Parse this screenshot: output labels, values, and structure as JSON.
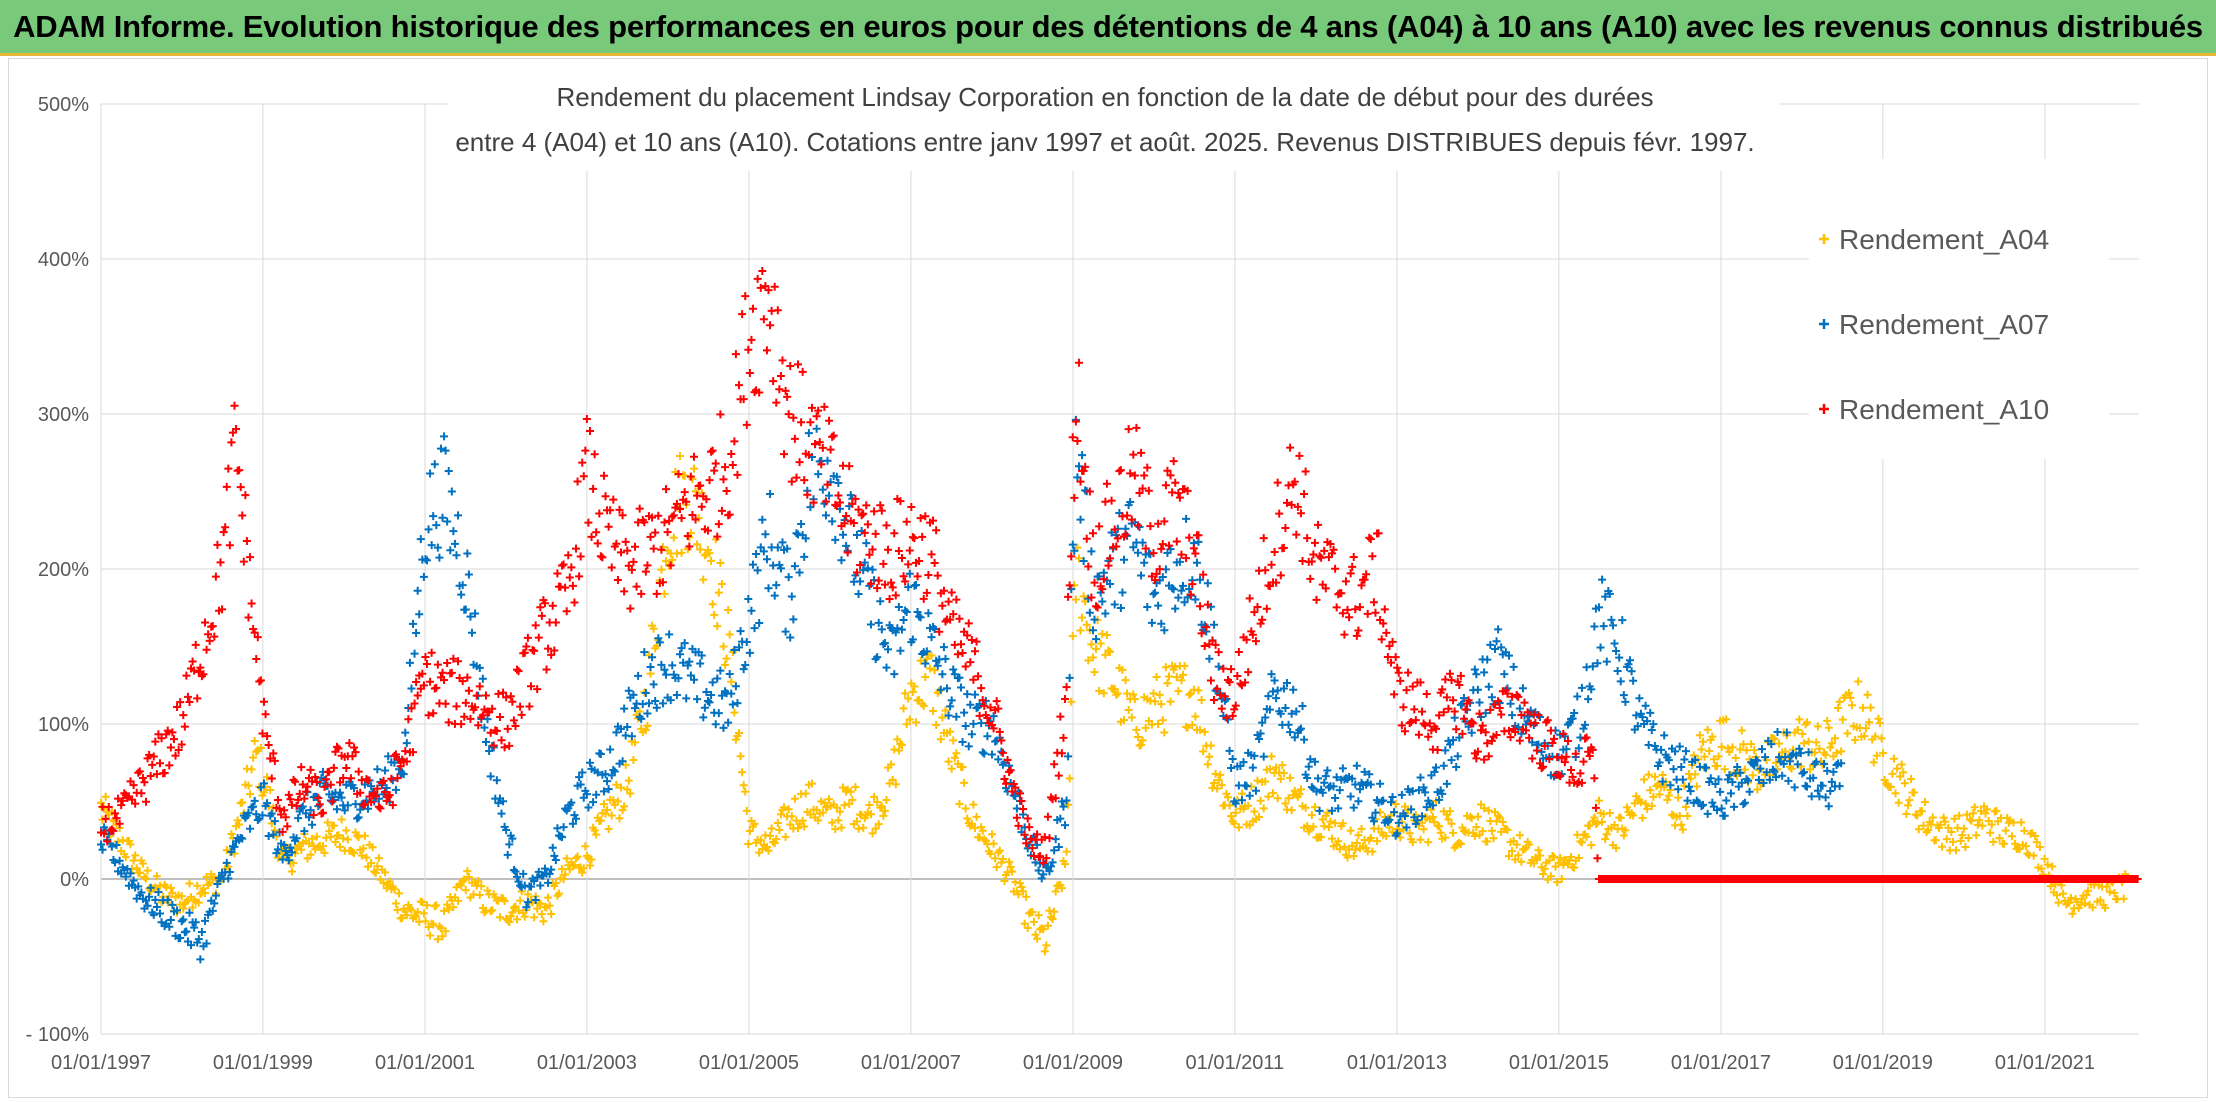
{
  "header": {
    "title": "ADAM Informe. Evolution historique des performances en euros pour des détentions de 4 ans (A04) à 10 ans (A10) avec les revenus connus distribués"
  },
  "chart_data": {
    "type": "scatter",
    "title_line1": "Rendement du placement Lindsay Corporation en fonction de la date de début pour des durées",
    "title_line2": "entre 4 (A04) et 10 ans (A10). Cotations entre janv 1997 et août. 2025. Revenus DISTRIBUES depuis févr. 1997.",
    "y_axis": {
      "min": -100,
      "max": 500,
      "ticks": [
        -100,
        0,
        100,
        200,
        300,
        400,
        500
      ],
      "tick_labels": [
        "- 100%",
        "0%",
        "100%",
        "200%",
        "300%",
        "400%",
        "500%"
      ]
    },
    "x_axis": {
      "min": "1997-01-01",
      "max": "2022-03-01",
      "tick_dates": [
        "1997-01-01",
        "1999-01-01",
        "2001-01-01",
        "2003-01-01",
        "2005-01-01",
        "2007-01-01",
        "2009-01-01",
        "2011-01-01",
        "2013-01-01",
        "2015-01-01",
        "2017-01-01",
        "2019-01-01",
        "2021-01-01"
      ],
      "tick_labels": [
        "01/01/1997",
        "01/01/1999",
        "01/01/2001",
        "01/01/2003",
        "01/01/2005",
        "01/01/2007",
        "01/01/2009",
        "01/01/2011",
        "01/01/2013",
        "01/01/2015",
        "01/01/2017",
        "01/01/2019",
        "01/01/2021"
      ]
    },
    "grid": true,
    "legend_position": "right",
    "series": [
      {
        "name": "Rendement_A04",
        "color": "#ffc000",
        "end": "2022-03-01",
        "points": [
          [
            "1997-01-01",
            45
          ],
          [
            "1997-04-01",
            25
          ],
          [
            "1997-07-01",
            5
          ],
          [
            "1997-10-01",
            -10
          ],
          [
            "1998-01-01",
            -15
          ],
          [
            "1998-04-01",
            -5
          ],
          [
            "1998-07-01",
            0
          ],
          [
            "1998-10-01",
            45
          ],
          [
            "1998-12-01",
            80
          ],
          [
            "1999-01-15",
            60
          ],
          [
            "1999-04-01",
            10
          ],
          [
            "1999-07-01",
            20
          ],
          [
            "1999-10-01",
            25
          ],
          [
            "2000-01-01",
            30
          ],
          [
            "2000-04-01",
            20
          ],
          [
            "2000-07-01",
            0
          ],
          [
            "2000-10-01",
            -20
          ],
          [
            "2001-01-01",
            -25
          ],
          [
            "2001-04-01",
            -30
          ],
          [
            "2001-07-01",
            0
          ],
          [
            "2001-10-01",
            -15
          ],
          [
            "2002-01-01",
            -20
          ],
          [
            "2002-04-01",
            -15
          ],
          [
            "2002-07-01",
            -20
          ],
          [
            "2002-10-01",
            5
          ],
          [
            "2003-01-01",
            15
          ],
          [
            "2003-04-01",
            40
          ],
          [
            "2003-07-01",
            60
          ],
          [
            "2003-10-01",
            120
          ],
          [
            "2004-01-01",
            230
          ],
          [
            "2004-04-01",
            250
          ],
          [
            "2004-07-01",
            220
          ],
          [
            "2004-10-01",
            150
          ],
          [
            "2005-01-01",
            30
          ],
          [
            "2005-04-01",
            20
          ],
          [
            "2005-07-01",
            40
          ],
          [
            "2005-10-01",
            50
          ],
          [
            "2006-01-01",
            40
          ],
          [
            "2006-04-01",
            50
          ],
          [
            "2006-07-01",
            40
          ],
          [
            "2006-10-01",
            60
          ],
          [
            "2007-01-01",
            120
          ],
          [
            "2007-04-01",
            130
          ],
          [
            "2007-07-01",
            80
          ],
          [
            "2007-10-01",
            40
          ],
          [
            "2008-01-01",
            20
          ],
          [
            "2008-04-01",
            0
          ],
          [
            "2008-07-01",
            -30
          ],
          [
            "2008-09-01",
            -40
          ],
          [
            "2008-12-01",
            10
          ],
          [
            "2009-01-15",
            200
          ],
          [
            "2009-04-01",
            150
          ],
          [
            "2009-07-01",
            130
          ],
          [
            "2009-10-01",
            100
          ],
          [
            "2010-01-01",
            110
          ],
          [
            "2010-04-01",
            120
          ],
          [
            "2010-07-01",
            120
          ],
          [
            "2010-10-01",
            70
          ],
          [
            "2011-01-01",
            40
          ],
          [
            "2011-04-01",
            50
          ],
          [
            "2011-07-01",
            70
          ],
          [
            "2011-10-01",
            50
          ],
          [
            "2012-01-01",
            40
          ],
          [
            "2012-04-01",
            30
          ],
          [
            "2012-07-01",
            20
          ],
          [
            "2012-10-01",
            30
          ],
          [
            "2013-01-01",
            40
          ],
          [
            "2013-04-01",
            30
          ],
          [
            "2013-07-01",
            40
          ],
          [
            "2013-10-01",
            30
          ],
          [
            "2014-01-01",
            40
          ],
          [
            "2014-04-01",
            30
          ],
          [
            "2014-07-01",
            20
          ],
          [
            "2014-10-01",
            10
          ],
          [
            "2015-01-01",
            5
          ],
          [
            "2015-04-01",
            20
          ],
          [
            "2015-07-01",
            40
          ],
          [
            "2015-10-01",
            30
          ],
          [
            "2016-01-01",
            50
          ],
          [
            "2016-04-01",
            60
          ],
          [
            "2016-07-01",
            40
          ],
          [
            "2016-10-01",
            80
          ],
          [
            "2017-01-01",
            90
          ],
          [
            "2017-04-01",
            80
          ],
          [
            "2017-07-01",
            70
          ],
          [
            "2017-10-01",
            80
          ],
          [
            "2018-01-01",
            90
          ],
          [
            "2018-04-01",
            80
          ],
          [
            "2018-07-01",
            100
          ],
          [
            "2018-10-01",
            110
          ],
          [
            "2019-01-01",
            80
          ],
          [
            "2019-04-01",
            60
          ],
          [
            "2019-07-01",
            40
          ],
          [
            "2019-10-01",
            30
          ],
          [
            "2020-01-01",
            30
          ],
          [
            "2020-04-01",
            40
          ],
          [
            "2020-07-01",
            30
          ],
          [
            "2020-10-01",
            30
          ],
          [
            "2021-01-01",
            10
          ],
          [
            "2021-04-01",
            -15
          ],
          [
            "2021-07-01",
            -10
          ],
          [
            "2021-10-01",
            -10
          ],
          [
            "2022-01-01",
            -5
          ]
        ]
      },
      {
        "name": "Rendement_A07",
        "color": "#0070c0",
        "end": "2018-10-01",
        "points": [
          [
            "1997-01-01",
            25
          ],
          [
            "1997-04-01",
            10
          ],
          [
            "1997-07-01",
            -10
          ],
          [
            "1997-10-01",
            -20
          ],
          [
            "1998-01-01",
            -30
          ],
          [
            "1998-04-01",
            -40
          ],
          [
            "1998-07-01",
            0
          ],
          [
            "1998-10-01",
            30
          ],
          [
            "1999-01-01",
            50
          ],
          [
            "1999-04-01",
            15
          ],
          [
            "1999-07-01",
            40
          ],
          [
            "1999-10-01",
            55
          ],
          [
            "2000-01-01",
            50
          ],
          [
            "2000-04-01",
            55
          ],
          [
            "2000-07-01",
            60
          ],
          [
            "2000-10-01",
            80
          ],
          [
            "2001-01-01",
            230
          ],
          [
            "2001-04-01",
            250
          ],
          [
            "2001-07-01",
            200
          ],
          [
            "2001-10-01",
            100
          ],
          [
            "2002-01-01",
            30
          ],
          [
            "2002-04-01",
            -10
          ],
          [
            "2002-07-01",
            0
          ],
          [
            "2002-10-01",
            40
          ],
          [
            "2003-01-01",
            60
          ],
          [
            "2003-04-01",
            70
          ],
          [
            "2003-07-01",
            100
          ],
          [
            "2003-10-01",
            130
          ],
          [
            "2004-01-01",
            140
          ],
          [
            "2004-04-01",
            130
          ],
          [
            "2004-07-01",
            120
          ],
          [
            "2004-10-01",
            110
          ],
          [
            "2005-01-01",
            170
          ],
          [
            "2005-04-01",
            220
          ],
          [
            "2005-07-01",
            180
          ],
          [
            "2005-10-01",
            260
          ],
          [
            "2006-01-01",
            270
          ],
          [
            "2006-04-01",
            220
          ],
          [
            "2006-07-01",
            180
          ],
          [
            "2006-10-01",
            140
          ],
          [
            "2007-01-01",
            180
          ],
          [
            "2007-04-01",
            150
          ],
          [
            "2007-07-01",
            120
          ],
          [
            "2007-10-01",
            100
          ],
          [
            "2008-01-01",
            100
          ],
          [
            "2008-04-01",
            60
          ],
          [
            "2008-07-01",
            20
          ],
          [
            "2008-09-01",
            0
          ],
          [
            "2008-12-01",
            50
          ],
          [
            "2009-01-15",
            280
          ],
          [
            "2009-04-01",
            180
          ],
          [
            "2009-07-01",
            200
          ],
          [
            "2009-10-01",
            220
          ],
          [
            "2010-01-01",
            180
          ],
          [
            "2010-04-01",
            200
          ],
          [
            "2010-07-01",
            210
          ],
          [
            "2010-10-01",
            150
          ],
          [
            "2011-01-01",
            60
          ],
          [
            "2011-04-01",
            70
          ],
          [
            "2011-07-01",
            120
          ],
          [
            "2011-10-01",
            110
          ],
          [
            "2012-01-01",
            60
          ],
          [
            "2012-04-01",
            55
          ],
          [
            "2012-07-01",
            60
          ],
          [
            "2012-10-01",
            50
          ],
          [
            "2013-01-01",
            40
          ],
          [
            "2013-04-01",
            50
          ],
          [
            "2013-07-01",
            60
          ],
          [
            "2013-10-01",
            90
          ],
          [
            "2014-01-01",
            120
          ],
          [
            "2014-04-01",
            140
          ],
          [
            "2014-07-01",
            110
          ],
          [
            "2014-10-01",
            90
          ],
          [
            "2015-01-01",
            80
          ],
          [
            "2015-04-01",
            100
          ],
          [
            "2015-07-01",
            170
          ],
          [
            "2015-10-01",
            150
          ],
          [
            "2016-01-01",
            100
          ],
          [
            "2016-04-01",
            80
          ],
          [
            "2016-07-01",
            70
          ],
          [
            "2016-10-01",
            60
          ],
          [
            "2017-01-01",
            50
          ],
          [
            "2017-04-01",
            60
          ],
          [
            "2017-07-01",
            70
          ],
          [
            "2017-10-01",
            80
          ],
          [
            "2018-01-01",
            70
          ],
          [
            "2018-04-01",
            60
          ],
          [
            "2018-07-01",
            60
          ]
        ]
      },
      {
        "name": "Rendement_A10",
        "color": "#ff0000",
        "end": "2022-03-01",
        "points": [
          [
            "1997-01-01",
            35
          ],
          [
            "1997-04-01",
            40
          ],
          [
            "1997-07-01",
            60
          ],
          [
            "1997-10-01",
            80
          ],
          [
            "1998-01-01",
            100
          ],
          [
            "1998-04-01",
            150
          ],
          [
            "1998-07-01",
            200
          ],
          [
            "1998-09-01",
            280
          ],
          [
            "1998-12-01",
            150
          ],
          [
            "1999-01-15",
            90
          ],
          [
            "1999-04-01",
            40
          ],
          [
            "1999-07-01",
            60
          ],
          [
            "1999-10-01",
            50
          ],
          [
            "2000-01-01",
            80
          ],
          [
            "2000-04-01",
            60
          ],
          [
            "2000-07-01",
            50
          ],
          [
            "2000-10-01",
            80
          ],
          [
            "2001-01-01",
            130
          ],
          [
            "2001-04-01",
            120
          ],
          [
            "2001-07-01",
            120
          ],
          [
            "2001-10-01",
            110
          ],
          [
            "2002-01-01",
            100
          ],
          [
            "2002-04-01",
            130
          ],
          [
            "2002-07-01",
            160
          ],
          [
            "2002-10-01",
            180
          ],
          [
            "2003-01-01",
            260
          ],
          [
            "2003-04-01",
            220
          ],
          [
            "2003-07-01",
            200
          ],
          [
            "2003-10-01",
            210
          ],
          [
            "2004-01-01",
            220
          ],
          [
            "2004-04-01",
            240
          ],
          [
            "2004-07-01",
            250
          ],
          [
            "2004-10-01",
            270
          ],
          [
            "2005-01-01",
            350
          ],
          [
            "2005-04-01",
            380
          ],
          [
            "2005-07-01",
            300
          ],
          [
            "2005-10-01",
            280
          ],
          [
            "2006-01-01",
            260
          ],
          [
            "2006-04-01",
            230
          ],
          [
            "2006-07-01",
            220
          ],
          [
            "2006-10-01",
            210
          ],
          [
            "2007-01-01",
            220
          ],
          [
            "2007-04-01",
            210
          ],
          [
            "2007-07-01",
            160
          ],
          [
            "2007-10-01",
            140
          ],
          [
            "2008-01-01",
            110
          ],
          [
            "2008-04-01",
            60
          ],
          [
            "2008-07-01",
            20
          ],
          [
            "2008-09-01",
            20
          ],
          [
            "2008-12-01",
            120
          ],
          [
            "2009-01-15",
            320
          ],
          [
            "2009-04-01",
            200
          ],
          [
            "2009-07-01",
            230
          ],
          [
            "2009-10-01",
            260
          ],
          [
            "2010-01-01",
            220
          ],
          [
            "2010-04-01",
            240
          ],
          [
            "2010-07-01",
            210
          ],
          [
            "2010-10-01",
            130
          ],
          [
            "2011-01-01",
            120
          ],
          [
            "2011-04-01",
            170
          ],
          [
            "2011-07-01",
            220
          ],
          [
            "2011-10-01",
            260
          ],
          [
            "2012-01-01",
            200
          ],
          [
            "2012-04-01",
            190
          ],
          [
            "2012-07-01",
            180
          ],
          [
            "2012-10-01",
            200
          ],
          [
            "2013-01-01",
            120
          ],
          [
            "2013-04-01",
            110
          ],
          [
            "2013-07-01",
            100
          ],
          [
            "2013-10-01",
            120
          ],
          [
            "2014-01-01",
            90
          ],
          [
            "2014-04-01",
            100
          ],
          [
            "2014-07-01",
            110
          ],
          [
            "2014-10-01",
            90
          ],
          [
            "2015-01-01",
            80
          ],
          [
            "2015-04-01",
            70
          ],
          [
            "2015-06-01",
            80
          ],
          [
            "2015-07-01",
            0
          ],
          [
            "2022-03-01",
            0
          ]
        ]
      }
    ]
  }
}
